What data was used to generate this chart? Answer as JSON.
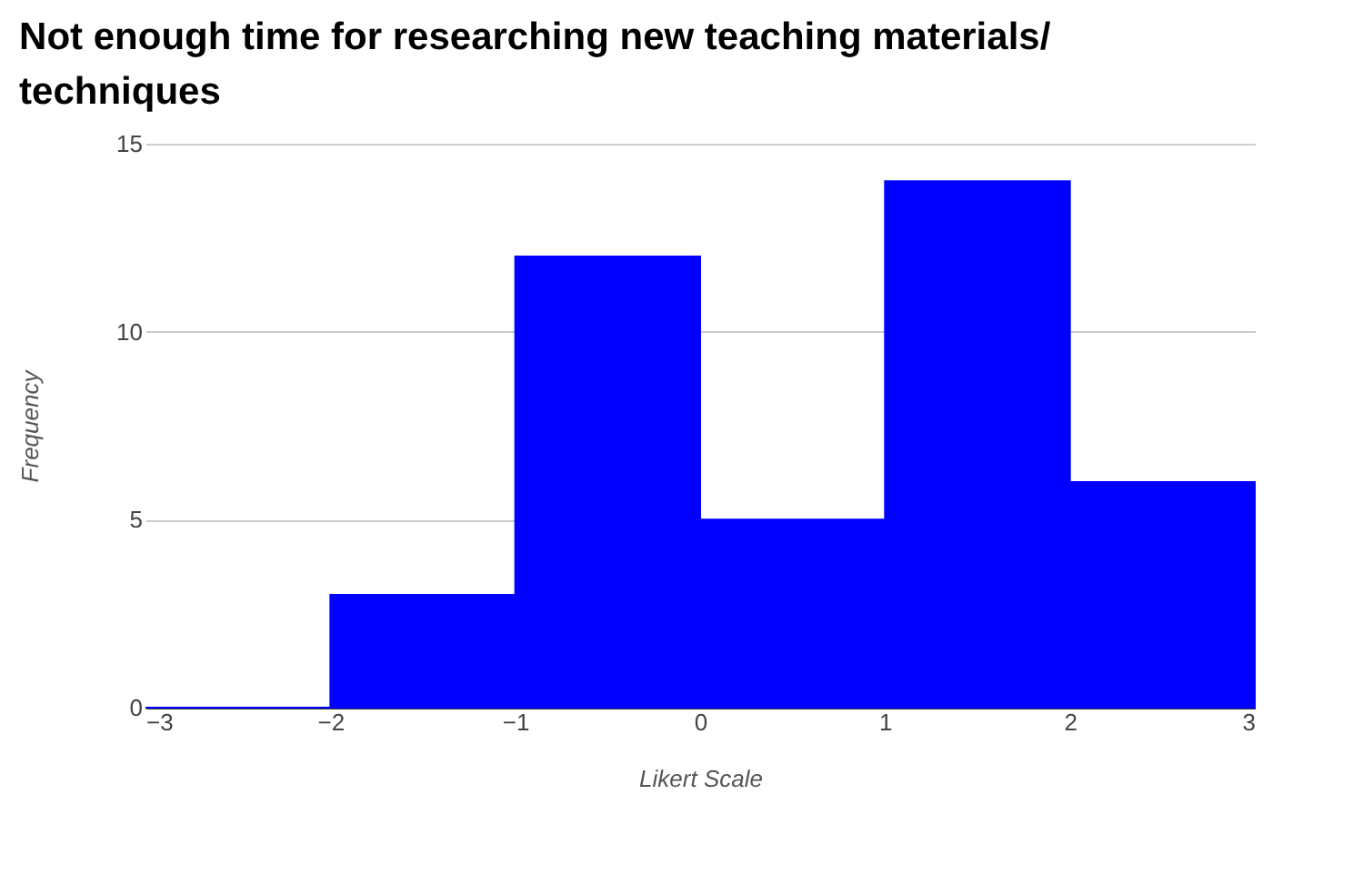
{
  "chart_data": {
    "type": "histogram",
    "title": "Not enough time for researching new teaching materials/ techniques",
    "xlabel": "Likert Scale",
    "ylabel": "Frequency",
    "bins": [
      -3,
      -2,
      -1,
      0,
      1,
      2,
      3
    ],
    "values": [
      0,
      3,
      12,
      5,
      14,
      6
    ],
    "color": "#0000ff",
    "xlim": [
      -3,
      3
    ],
    "xticks": [
      -3,
      -2,
      -1,
      0,
      1,
      2,
      3
    ],
    "ylim": [
      0,
      15
    ],
    "yticks": [
      0,
      5,
      10,
      15
    ],
    "grid": "y"
  }
}
